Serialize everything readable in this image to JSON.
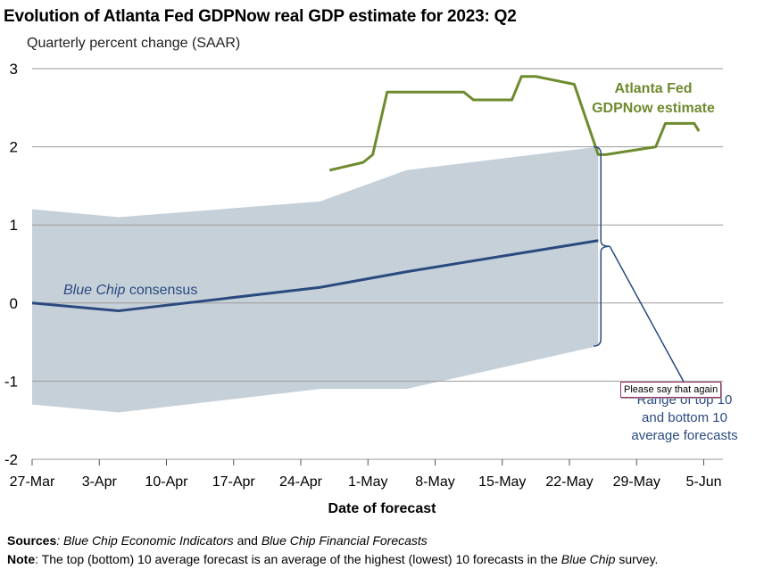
{
  "chart_data": {
    "type": "line",
    "title": "Evolution of Atlanta Fed GDPNow real GDP estimate for 2023: Q2",
    "subtitle": "Quarterly percent change (SAAR)",
    "xlabel": "Date of forecast",
    "ylabel": "",
    "ylim": [
      -2,
      3
    ],
    "yticks": [
      3,
      2,
      1,
      0,
      -1,
      -2
    ],
    "ytick_labels": [
      "3",
      "2",
      "1",
      "0",
      "-1",
      "-2"
    ],
    "xlim": [
      0,
      72
    ],
    "xticks": [
      0,
      7,
      14,
      21,
      28,
      35,
      42,
      49,
      56,
      63,
      70
    ],
    "xtick_labels": [
      "27-Mar",
      "3-Apr",
      "10-Apr",
      "17-Apr",
      "24-Apr",
      "1-May",
      "8-May",
      "15-May",
      "22-May",
      "29-May",
      "5-Jun"
    ],
    "grid": true,
    "series": [
      {
        "name": "Atlanta Fed GDPNow estimate",
        "color": "#6e8b2e",
        "x": [
          31,
          34.5,
          35.5,
          37,
          45,
          46,
          50,
          51,
          52.5,
          56.5,
          59,
          59.8,
          65,
          66,
          69,
          69.5
        ],
        "y": [
          1.7,
          1.8,
          1.9,
          2.7,
          2.7,
          2.6,
          2.6,
          2.9,
          2.9,
          2.8,
          1.9,
          1.9,
          2.0,
          2.3,
          2.3,
          2.2
        ]
      },
      {
        "name": "Blue Chip consensus",
        "color": "#2a4a7f",
        "x": [
          0,
          9,
          30,
          39,
          59
        ],
        "y": [
          0.0,
          -0.1,
          0.2,
          0.4,
          0.8
        ]
      }
    ],
    "band": {
      "name": "Range of top 10 and bottom 10 average forecasts",
      "color": "#c6d0d9",
      "x": [
        0,
        9,
        30,
        39,
        59
      ],
      "upper": [
        1.2,
        1.1,
        1.3,
        1.7,
        2.0
      ],
      "lower": [
        -1.3,
        -1.4,
        -1.1,
        -1.1,
        -0.55
      ]
    },
    "annotations": {
      "gdpnow_label_line1": "Atlanta Fed",
      "gdpnow_label_line2": "GDPNow estimate",
      "bluechip_label_italic": "Blue Chip",
      "bluechip_label_rest": " consensus",
      "range_label_line1": "Range of top 10",
      "range_label_line2": "and bottom 10",
      "range_label_line3": "average forecasts"
    }
  },
  "footnotes": {
    "sources_label": "Sources",
    "sources_sep": ": ",
    "sources_part1": "Blue Chip Economic Indicators",
    "sources_and": " and ",
    "sources_part2": "Blue Chip Financial Forecasts",
    "note_label": "Note",
    "note_sep": ": ",
    "note_text1": "The top (bottom) 10 average forecast is an average of the highest (lowest) 10 forecasts in the ",
    "note_italic": "Blue Chip",
    "note_text2": " survey."
  },
  "tooltip": {
    "text": "Please say that again"
  }
}
